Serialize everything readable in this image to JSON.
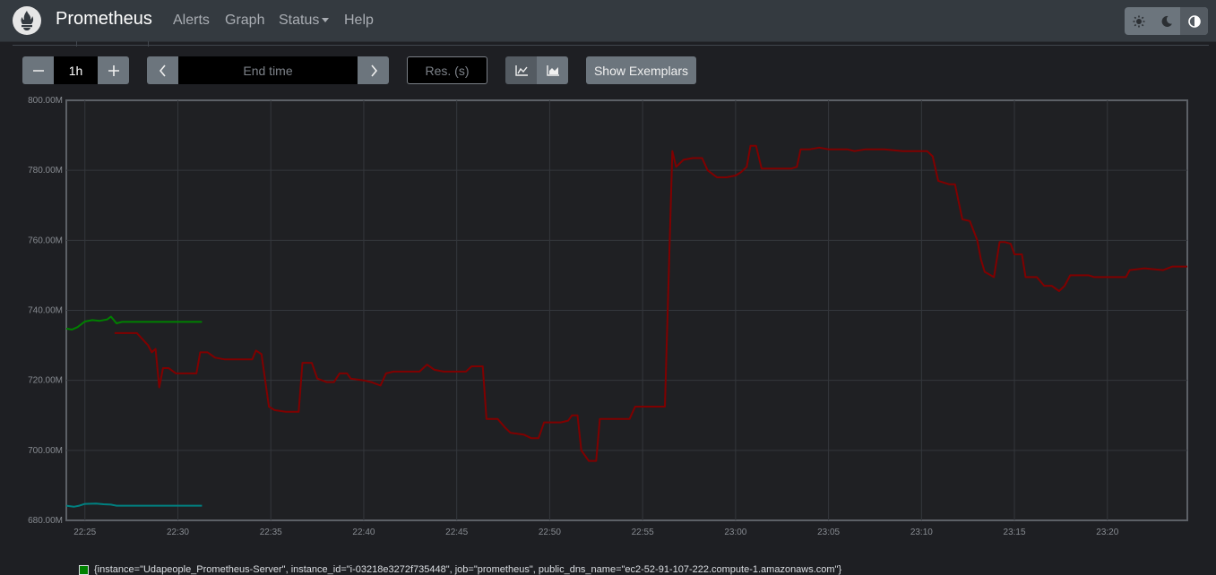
{
  "navbar": {
    "brand": "Prometheus",
    "links": [
      "Alerts",
      "Graph",
      "Status",
      "Help"
    ],
    "theme_icons": [
      "sun-icon",
      "moon-icon",
      "contrast-icon"
    ]
  },
  "controls": {
    "range_value": "1h",
    "end_time_placeholder": "End time",
    "resolution_placeholder": "Res. (s)",
    "show_exemplars_label": "Show Exemplars",
    "stack_icons": [
      "line-chart-icon",
      "area-chart-icon"
    ]
  },
  "legend": {
    "entries": [
      "{instance=\"Udapeople_Prometheus-Server\", instance_id=\"i-03218e3272f735448\", job=\"prometheus\", public_dns_name=\"ec2-52-91-107-222.compute-1.amazonaws.com\"}"
    ]
  },
  "colors": {
    "green": "#008000",
    "red": "#800000",
    "teal": "#008080",
    "background": "#1e1f23"
  },
  "chart_data": {
    "type": "line",
    "x_unit": "minutes since 22:24",
    "xlim": [
      0,
      60.3
    ],
    "ylim": [
      680,
      800
    ],
    "yticks": [
      "680.00M",
      "700.00M",
      "720.00M",
      "740.00M",
      "760.00M",
      "780.00M",
      "800.00M"
    ],
    "xticks": [
      {
        "t": 1,
        "label": "22:25"
      },
      {
        "t": 6,
        "label": "22:30"
      },
      {
        "t": 11,
        "label": "22:35"
      },
      {
        "t": 16,
        "label": "22:40"
      },
      {
        "t": 21,
        "label": "22:45"
      },
      {
        "t": 26,
        "label": "22:50"
      },
      {
        "t": 31,
        "label": "22:55"
      },
      {
        "t": 36,
        "label": "23:00"
      },
      {
        "t": 41,
        "label": "23:05"
      },
      {
        "t": 46,
        "label": "23:10"
      },
      {
        "t": 51,
        "label": "23:15"
      },
      {
        "t": 56,
        "label": "23:20"
      }
    ],
    "series": [
      {
        "color": "#008000",
        "points": [
          [
            0,
            734.8
          ],
          [
            0.3,
            734.5
          ],
          [
            0.6,
            735.2
          ],
          [
            1,
            736.8
          ],
          [
            1.4,
            737.2
          ],
          [
            1.8,
            737.0
          ],
          [
            2.2,
            737.4
          ],
          [
            2.4,
            738.2
          ],
          [
            2.7,
            736.3
          ],
          [
            3,
            736.7
          ],
          [
            4,
            736.7
          ],
          [
            5,
            736.7
          ],
          [
            6,
            736.7
          ],
          [
            7.3,
            736.7
          ]
        ]
      },
      {
        "color": "#008080",
        "points": [
          [
            0,
            684.2
          ],
          [
            0.4,
            683.9
          ],
          [
            0.7,
            684.2
          ],
          [
            1,
            684.7
          ],
          [
            1.6,
            684.8
          ],
          [
            2,
            684.6
          ],
          [
            2.4,
            684.5
          ],
          [
            2.7,
            684.2
          ],
          [
            4,
            684.2
          ],
          [
            5.5,
            684.2
          ],
          [
            7.3,
            684.2
          ]
        ]
      },
      {
        "color": "#800000",
        "points": [
          [
            2.6,
            733.5
          ],
          [
            3.8,
            733.5
          ],
          [
            4.4,
            730
          ],
          [
            4.6,
            728
          ],
          [
            4.8,
            729
          ],
          [
            5.0,
            718
          ],
          [
            5.2,
            723.5
          ],
          [
            5.5,
            723.5
          ],
          [
            5.9,
            722
          ],
          [
            6.4,
            722
          ],
          [
            7,
            722
          ],
          [
            7.2,
            728
          ],
          [
            7.6,
            728
          ],
          [
            8,
            726.5
          ],
          [
            8.5,
            726
          ],
          [
            9.5,
            726
          ],
          [
            10,
            726
          ],
          [
            10.2,
            728.5
          ],
          [
            10.5,
            727.5
          ],
          [
            10.9,
            712.5
          ],
          [
            11.2,
            711.5
          ],
          [
            11.8,
            711
          ],
          [
            12.5,
            711
          ],
          [
            12.7,
            725
          ],
          [
            13.2,
            725
          ],
          [
            13.5,
            720.5
          ],
          [
            14,
            719.5
          ],
          [
            14.4,
            719.5
          ],
          [
            14.7,
            722
          ],
          [
            15.1,
            722
          ],
          [
            15.3,
            720.5
          ],
          [
            16,
            720
          ],
          [
            16.4,
            719.5
          ],
          [
            16.9,
            718.5
          ],
          [
            17.2,
            722
          ],
          [
            17.6,
            722.5
          ],
          [
            18.5,
            722.5
          ],
          [
            19,
            722.5
          ],
          [
            19.4,
            724.5
          ],
          [
            19.8,
            723
          ],
          [
            20.3,
            722.5
          ],
          [
            21.5,
            722.5
          ],
          [
            21.8,
            724
          ],
          [
            22.4,
            724
          ],
          [
            22.6,
            709
          ],
          [
            23.2,
            709
          ],
          [
            23.6,
            706.5
          ],
          [
            23.9,
            705
          ],
          [
            24.6,
            704.5
          ],
          [
            25,
            703.5
          ],
          [
            25.4,
            703.5
          ],
          [
            25.7,
            708
          ],
          [
            26,
            708
          ],
          [
            26.6,
            708
          ],
          [
            27,
            708.5
          ],
          [
            27.2,
            710
          ],
          [
            27.5,
            710
          ],
          [
            27.7,
            700
          ],
          [
            28.1,
            697
          ],
          [
            28.5,
            697
          ],
          [
            28.7,
            709
          ],
          [
            29.5,
            709
          ],
          [
            30.3,
            709
          ],
          [
            30.6,
            712.5
          ],
          [
            31.3,
            712.5
          ],
          [
            32.2,
            712.5
          ],
          [
            32.6,
            785.5
          ],
          [
            32.8,
            781
          ],
          [
            33.2,
            783
          ],
          [
            33.7,
            783.5
          ],
          [
            34.2,
            783.5
          ],
          [
            34.5,
            780
          ],
          [
            35,
            778
          ],
          [
            35.5,
            778
          ],
          [
            36,
            778.5
          ],
          [
            36.3,
            779.5
          ],
          [
            36.6,
            781
          ],
          [
            36.8,
            787
          ],
          [
            37.1,
            787
          ],
          [
            37.4,
            780.5
          ],
          [
            38,
            780.5
          ],
          [
            38.6,
            780.5
          ],
          [
            39,
            780.5
          ],
          [
            39.3,
            781
          ],
          [
            39.5,
            786
          ],
          [
            40,
            786
          ],
          [
            40.5,
            786.5
          ],
          [
            41,
            786
          ],
          [
            42,
            786
          ],
          [
            42.4,
            785.5
          ],
          [
            43,
            786
          ],
          [
            44,
            786
          ],
          [
            45,
            785.5
          ],
          [
            45.6,
            785.5
          ],
          [
            46.3,
            785.5
          ],
          [
            46.6,
            784
          ],
          [
            46.9,
            777
          ],
          [
            47.5,
            776
          ],
          [
            47.8,
            776
          ],
          [
            48,
            771
          ],
          [
            48.2,
            766
          ],
          [
            48.6,
            765.5
          ],
          [
            49,
            760
          ],
          [
            49.2,
            754.5
          ],
          [
            49.4,
            751
          ],
          [
            49.9,
            749.5
          ],
          [
            50.2,
            759.5
          ],
          [
            50.5,
            759.5
          ],
          [
            50.8,
            759
          ],
          [
            51,
            756
          ],
          [
            51.4,
            756
          ],
          [
            51.6,
            749.5
          ],
          [
            52.2,
            749.5
          ],
          [
            52.6,
            747
          ],
          [
            53,
            747
          ],
          [
            53.4,
            745.5
          ],
          [
            53.7,
            747
          ],
          [
            54,
            750
          ],
          [
            55,
            750
          ],
          [
            55.3,
            749.5
          ],
          [
            56,
            749.5
          ],
          [
            57,
            749.5
          ],
          [
            57.2,
            751.5
          ],
          [
            58,
            752
          ],
          [
            59,
            751.5
          ],
          [
            59.5,
            752.5
          ],
          [
            60.3,
            752.5
          ]
        ]
      }
    ]
  }
}
